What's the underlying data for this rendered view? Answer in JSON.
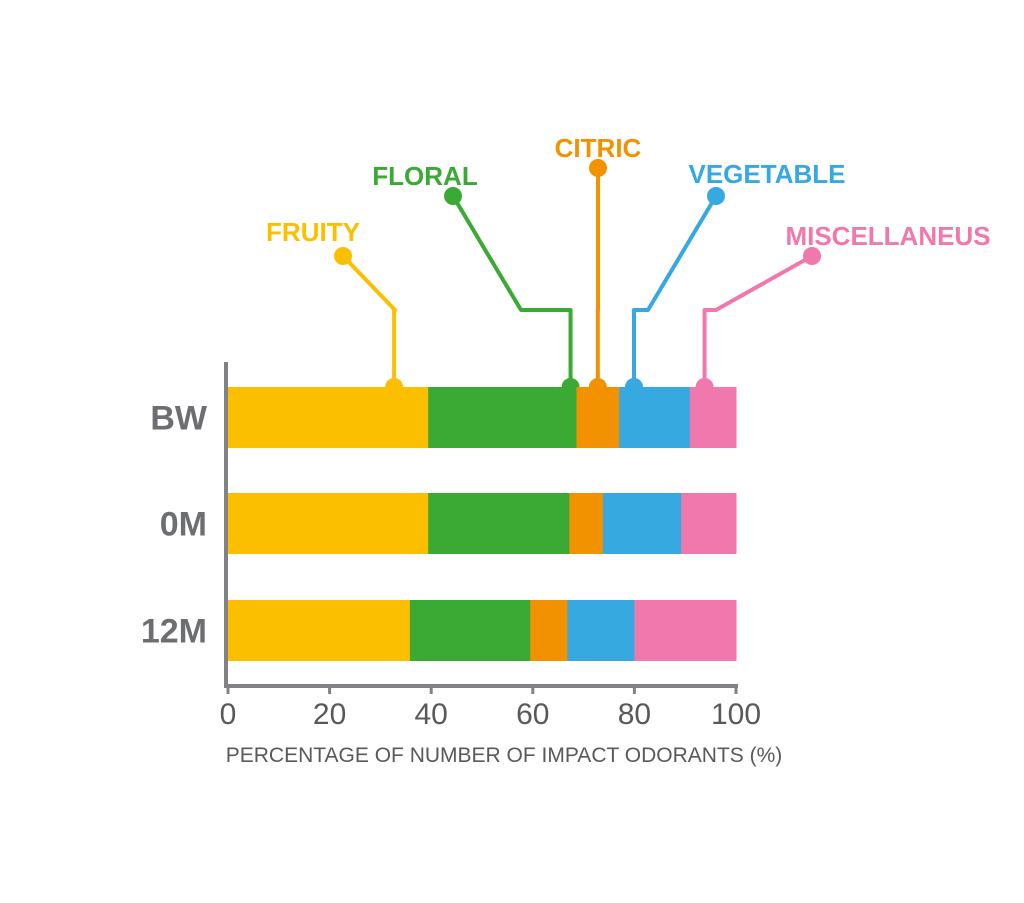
{
  "chart_data": {
    "type": "bar",
    "orientation": "horizontal",
    "stacked": true,
    "categories": [
      "BW",
      "0M",
      "12M"
    ],
    "series": [
      {
        "name": "FRUITY",
        "color": "#fbbf00",
        "values": [
          39.4,
          39.4,
          35.8
        ]
      },
      {
        "name": "FLORAL",
        "color": "#3aaa35",
        "values": [
          29.2,
          27.8,
          23.7
        ]
      },
      {
        "name": "CITRIC",
        "color": "#f39200",
        "values": [
          8.4,
          6.6,
          7.3
        ]
      },
      {
        "name": "VEGETABLE",
        "color": "#36a9e1",
        "values": [
          13.9,
          15.4,
          13.2
        ]
      },
      {
        "name": "MISCELLANEUS",
        "color": "#f078ac",
        "values": [
          9.1,
          10.8,
          20.0
        ]
      }
    ],
    "xlim": [
      0,
      100
    ],
    "xticks": [
      "0",
      "20",
      "40",
      "60",
      "80",
      "100"
    ],
    "xlabel": "PERCENTAGE OF NUMBER OF IMPACT ODORANTS (%)",
    "ylabel": "",
    "title": "",
    "grid": false,
    "legend": "callouts-top"
  }
}
